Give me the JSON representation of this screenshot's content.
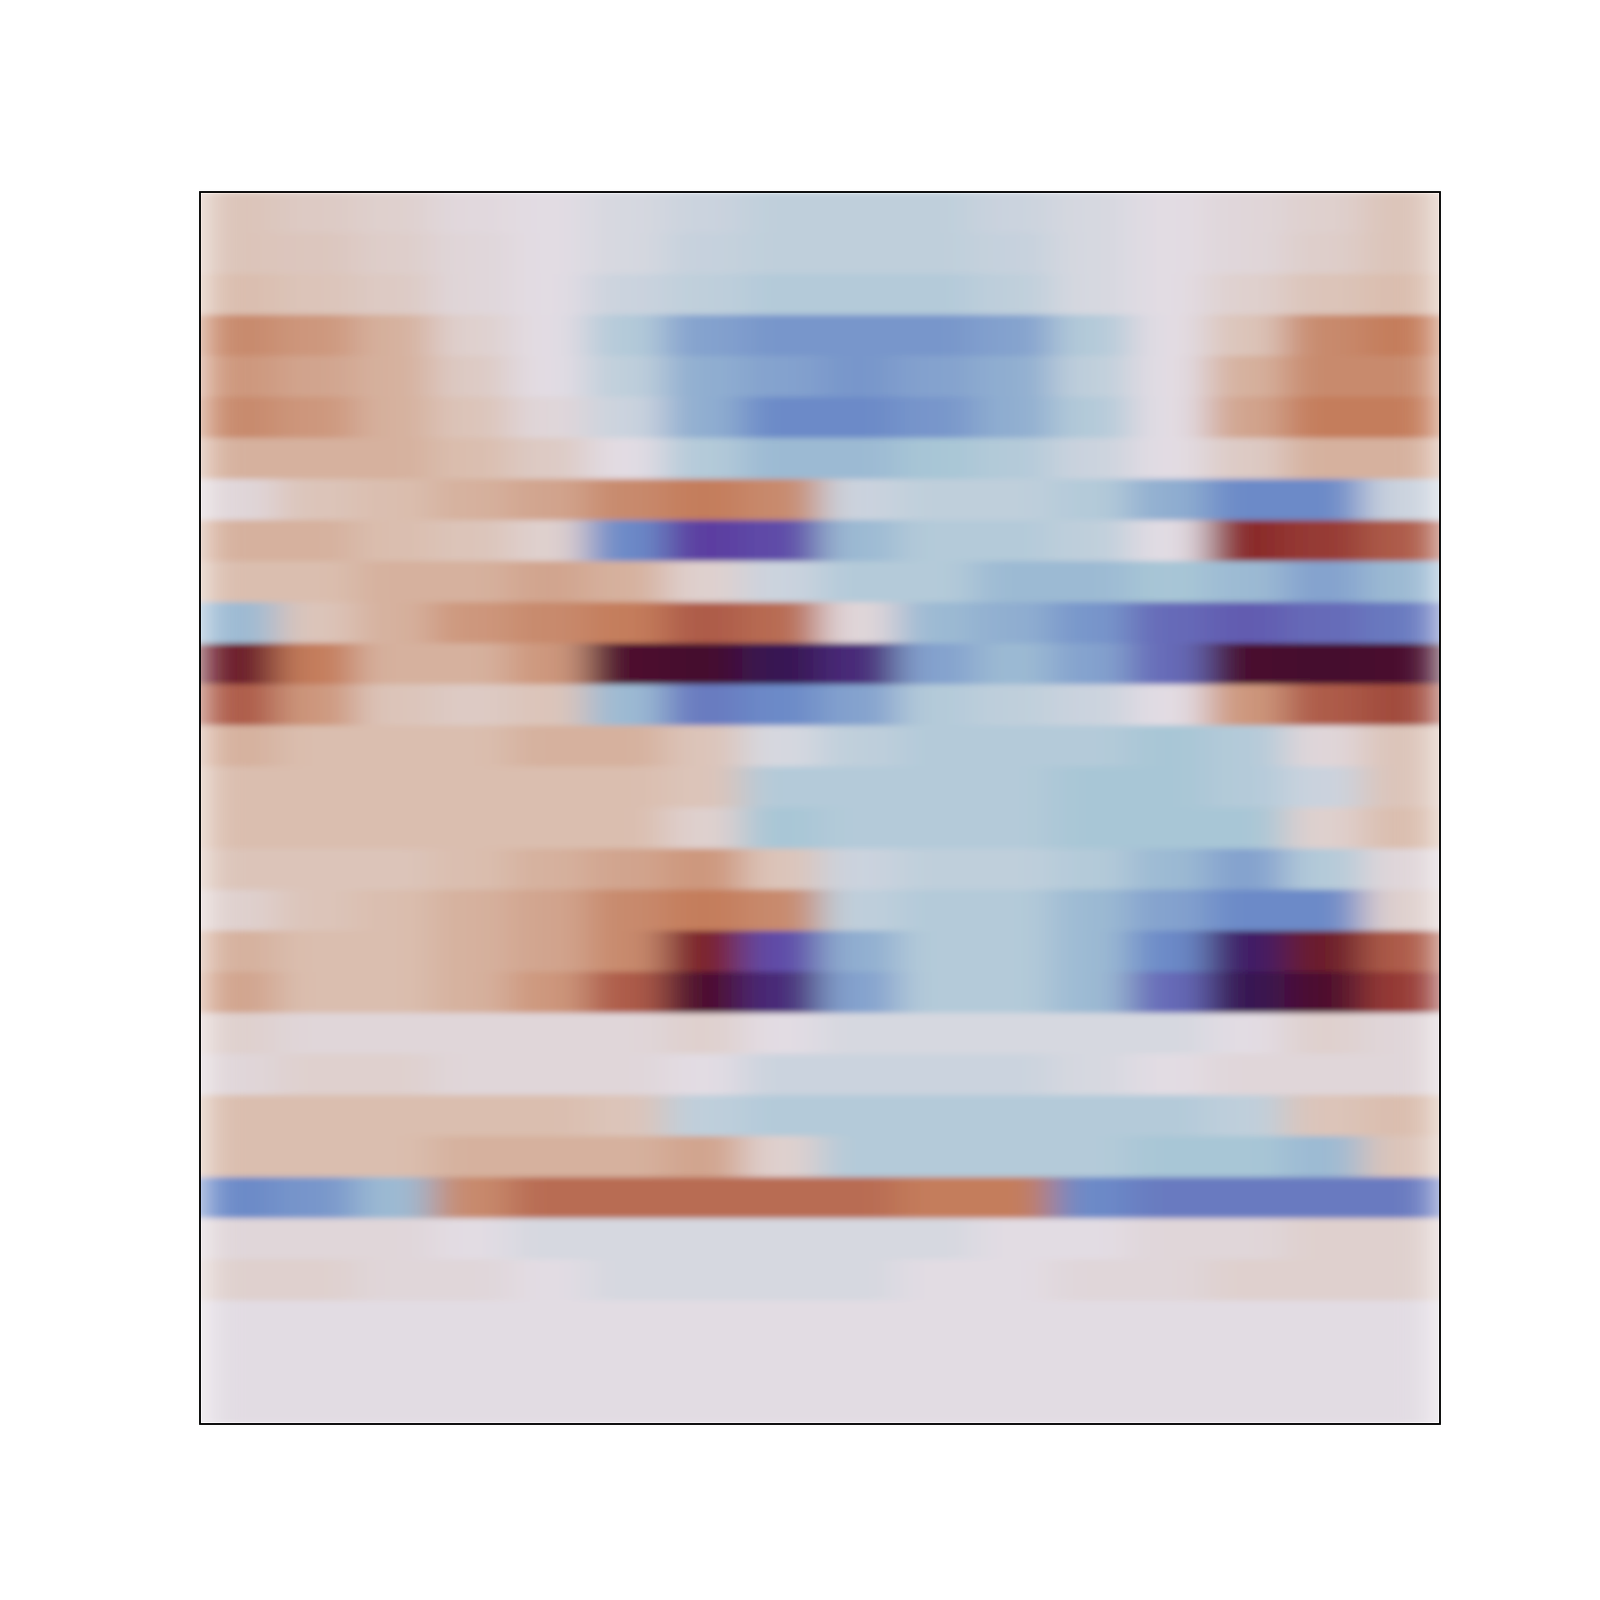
{
  "chart_data": {
    "type": "heatmap",
    "tick_labels": false,
    "zlim": [
      -1,
      1
    ],
    "cells": [
      [
        0.2,
        0.15,
        0.1,
        0.03,
        0,
        -0.05,
        -0.1,
        -0.15,
        -0.15,
        -0.15,
        -0.1,
        -0.05,
        0,
        0.05,
        0.1,
        0.2
      ],
      [
        0.2,
        0.18,
        0.12,
        0.05,
        0,
        -0.05,
        -0.12,
        -0.15,
        -0.15,
        -0.15,
        -0.12,
        -0.05,
        0,
        0.05,
        0.12,
        0.2
      ],
      [
        0.25,
        0.2,
        0.15,
        0.05,
        0,
        -0.1,
        -0.15,
        -0.2,
        -0.2,
        -0.2,
        -0.15,
        -0.05,
        0,
        0.1,
        0.2,
        0.25
      ],
      [
        0.45,
        0.4,
        0.3,
        0.1,
        0,
        -0.2,
        -0.4,
        -0.45,
        -0.45,
        -0.45,
        -0.4,
        -0.2,
        0,
        0.2,
        0.45,
        0.5
      ],
      [
        0.4,
        0.35,
        0.3,
        0.15,
        0,
        -0.15,
        -0.35,
        -0.4,
        -0.45,
        -0.4,
        -0.35,
        -0.15,
        0,
        0.3,
        0.45,
        0.45
      ],
      [
        0.45,
        0.4,
        0.3,
        0.2,
        0.05,
        -0.1,
        -0.35,
        -0.5,
        -0.5,
        -0.45,
        -0.35,
        -0.2,
        0,
        0.35,
        0.5,
        0.5
      ],
      [
        0.3,
        0.3,
        0.3,
        0.25,
        0.15,
        0,
        -0.2,
        -0.3,
        -0.3,
        -0.25,
        -0.2,
        -0.1,
        0,
        0.15,
        0.3,
        0.3
      ],
      [
        0.05,
        0.2,
        0.25,
        0.3,
        0.35,
        0.45,
        0.5,
        0.45,
        -0.1,
        -0.15,
        -0.15,
        -0.2,
        -0.35,
        -0.5,
        -0.5,
        -0.1
      ],
      [
        0.3,
        0.3,
        0.25,
        0.2,
        0.1,
        -0.5,
        -0.75,
        -0.7,
        -0.3,
        -0.2,
        -0.2,
        -0.15,
        0,
        0.75,
        0.7,
        0.6
      ],
      [
        0.25,
        0.25,
        0.3,
        0.3,
        0.35,
        0.3,
        0.1,
        -0.1,
        -0.2,
        -0.2,
        -0.3,
        -0.3,
        -0.25,
        -0.3,
        -0.4,
        -0.3
      ],
      [
        -0.3,
        0.2,
        0.3,
        0.4,
        0.45,
        0.5,
        0.6,
        0.55,
        0.05,
        -0.3,
        -0.35,
        -0.45,
        -0.6,
        -0.65,
        -0.6,
        -0.55
      ],
      [
        0.85,
        0.5,
        0.3,
        0.3,
        0.4,
        0.95,
        0.98,
        -0.95,
        -0.85,
        -0.4,
        -0.3,
        -0.4,
        -0.6,
        0.97,
        0.98,
        0.97
      ],
      [
        0.6,
        0.4,
        0.2,
        0.15,
        0.2,
        -0.3,
        -0.55,
        -0.5,
        -0.4,
        -0.2,
        -0.15,
        -0.1,
        0,
        0.4,
        0.6,
        0.65
      ],
      [
        0.3,
        0.25,
        0.25,
        0.25,
        0.3,
        0.3,
        0.2,
        -0.05,
        -0.15,
        -0.2,
        -0.2,
        -0.2,
        -0.25,
        -0.2,
        0.05,
        0.2
      ],
      [
        0.25,
        0.25,
        0.25,
        0.25,
        0.25,
        0.25,
        0.2,
        -0.2,
        -0.2,
        -0.2,
        -0.2,
        -0.25,
        -0.25,
        -0.2,
        -0.1,
        0.2
      ],
      [
        0.25,
        0.25,
        0.25,
        0.25,
        0.25,
        0.25,
        0.1,
        -0.25,
        -0.2,
        -0.2,
        -0.2,
        -0.25,
        -0.25,
        -0.25,
        0.1,
        0.25
      ],
      [
        0.2,
        0.2,
        0.2,
        0.25,
        0.3,
        0.35,
        0.4,
        0.2,
        -0.1,
        -0.15,
        -0.15,
        -0.2,
        -0.3,
        -0.4,
        -0.2,
        0.05
      ],
      [
        0.1,
        0.2,
        0.25,
        0.3,
        0.35,
        0.45,
        0.5,
        0.45,
        -0.15,
        -0.2,
        -0.2,
        -0.3,
        -0.4,
        -0.5,
        -0.5,
        0.1
      ],
      [
        0.3,
        0.25,
        0.25,
        0.3,
        0.35,
        0.45,
        0.8,
        -0.7,
        -0.35,
        -0.2,
        -0.2,
        -0.3,
        -0.5,
        -0.9,
        0.85,
        0.6
      ],
      [
        0.35,
        0.25,
        0.25,
        0.3,
        0.4,
        0.6,
        0.95,
        -0.85,
        -0.4,
        -0.2,
        -0.2,
        -0.3,
        -0.6,
        -0.95,
        0.95,
        0.7
      ],
      [
        0.1,
        0.05,
        0.05,
        0.05,
        0.05,
        0.05,
        0.1,
        0,
        -0.05,
        -0.05,
        -0.05,
        -0.05,
        -0.05,
        0,
        0.1,
        0.05
      ],
      [
        0.05,
        0.1,
        0.1,
        0.05,
        0.05,
        0.05,
        0,
        -0.1,
        -0.1,
        -0.1,
        -0.1,
        -0.05,
        0,
        0.05,
        0.05,
        0.05
      ],
      [
        0.25,
        0.25,
        0.25,
        0.25,
        0.25,
        0.2,
        -0.15,
        -0.2,
        -0.2,
        -0.2,
        -0.2,
        -0.2,
        -0.2,
        -0.15,
        0.2,
        0.25
      ],
      [
        0.25,
        0.25,
        0.25,
        0.3,
        0.3,
        0.3,
        0.35,
        0.1,
        -0.2,
        -0.2,
        -0.2,
        -0.2,
        -0.25,
        -0.25,
        -0.3,
        0.2
      ],
      [
        -0.5,
        -0.45,
        -0.3,
        0.45,
        0.55,
        0.55,
        0.55,
        0.55,
        0.55,
        0.5,
        0.5,
        -0.5,
        -0.55,
        -0.55,
        -0.55,
        -0.55
      ],
      [
        0.05,
        0.05,
        0.05,
        0,
        -0.05,
        -0.05,
        -0.05,
        -0.05,
        -0.05,
        -0.05,
        0,
        0,
        0.05,
        0.05,
        0.1,
        0.1
      ],
      [
        0.1,
        0.1,
        0.05,
        0.05,
        0,
        -0.05,
        -0.05,
        -0.05,
        -0.05,
        0,
        0,
        0.05,
        0.05,
        0.1,
        0.1,
        0.1
      ],
      [
        0,
        0,
        0,
        0,
        0,
        0,
        0,
        0,
        0,
        0,
        0,
        0,
        0,
        0,
        0,
        0
      ],
      [
        0,
        0,
        0,
        0,
        0,
        0,
        0,
        0,
        0,
        0,
        0,
        0,
        0,
        0,
        0,
        0
      ],
      [
        0,
        0,
        0,
        0,
        0,
        0,
        0,
        0,
        0,
        0,
        0,
        0,
        0,
        0,
        0,
        0
      ]
    ]
  }
}
